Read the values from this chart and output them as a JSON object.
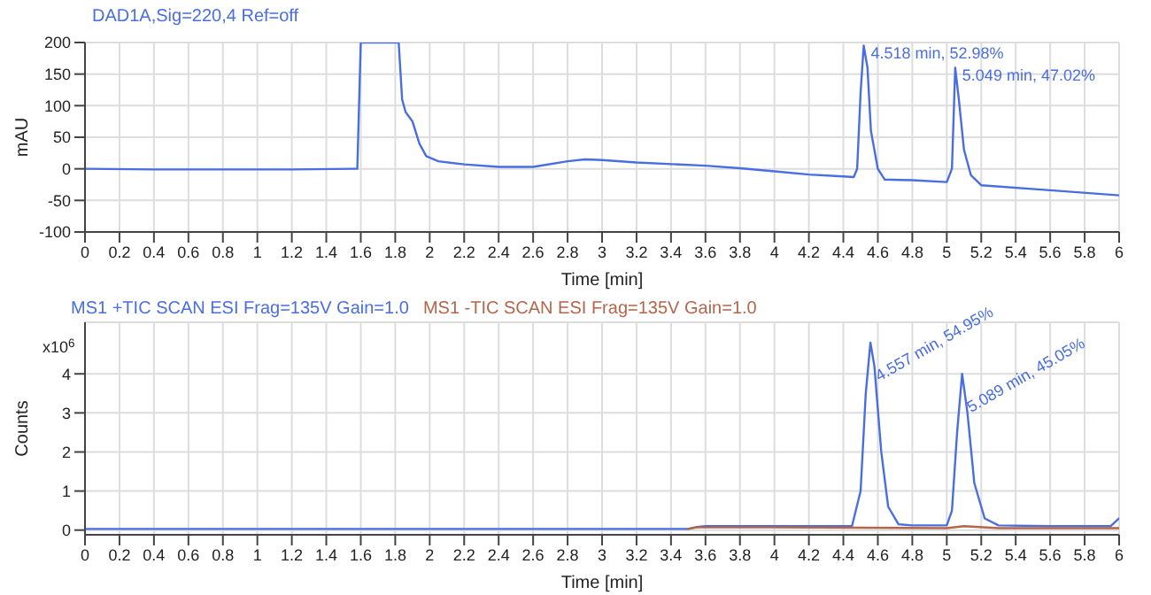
{
  "chart_data": [
    {
      "type": "line",
      "title": "DAD1A,Sig=220,4  Ref=off",
      "xlabel": "Time [min]",
      "ylabel": "mAU",
      "xlim": [
        0,
        6
      ],
      "xticks": [
        0,
        0.2,
        0.4,
        0.6,
        0.8,
        1,
        1.2,
        1.4,
        1.6,
        1.8,
        2,
        2.2,
        2.4,
        2.6,
        2.8,
        3,
        3.2,
        3.4,
        3.6,
        3.8,
        4,
        4.2,
        4.4,
        4.6,
        4.8,
        5,
        5.2,
        5.4,
        5.6,
        5.8,
        6
      ],
      "ylim": [
        -100,
        200
      ],
      "yticks": [
        -100,
        -50,
        0,
        50,
        100,
        150,
        200
      ],
      "grid": true,
      "marker": "none",
      "line_style": "solid",
      "annotations": [
        {
          "text": "4.518 min, 52.98%",
          "x": 4.518,
          "y": 195
        },
        {
          "text": "5.049 min, 47.02%",
          "x": 5.049,
          "y": 160
        }
      ],
      "series": [
        {
          "color": "#4a6ee0",
          "x": [
            0,
            0.4,
            0.8,
            1.2,
            1.56,
            1.58,
            1.6,
            1.7,
            1.82,
            1.84,
            1.86,
            1.9,
            1.94,
            1.98,
            2.05,
            2.2,
            2.4,
            2.6,
            2.8,
            2.9,
            3.0,
            3.2,
            3.6,
            3.8,
            4.0,
            4.2,
            4.4,
            4.46,
            4.48,
            4.5,
            4.518,
            4.54,
            4.56,
            4.6,
            4.64,
            4.8,
            5.0,
            5.03,
            5.049,
            5.07,
            5.1,
            5.14,
            5.2,
            5.6,
            6.0
          ],
          "values": [
            0,
            -1,
            -1,
            -1,
            0,
            0,
            200,
            200,
            200,
            110,
            90,
            75,
            40,
            20,
            12,
            7,
            3,
            3,
            12,
            15,
            14,
            10,
            5,
            1,
            -4,
            -9,
            -12,
            -13,
            0,
            120,
            195,
            160,
            60,
            0,
            -17,
            -18,
            -21,
            0,
            160,
            110,
            30,
            -10,
            -26,
            -34,
            -42
          ]
        }
      ]
    },
    {
      "type": "line",
      "xlabel": "Time [min]",
      "ylabel": "Counts",
      "xlim": [
        0,
        6
      ],
      "xticks": [
        0,
        0.2,
        0.4,
        0.6,
        0.8,
        1,
        1.2,
        1.4,
        1.6,
        1.8,
        2,
        2.2,
        2.4,
        2.6,
        2.8,
        3,
        3.2,
        3.4,
        3.6,
        3.8,
        4,
        4.2,
        4.4,
        4.6,
        4.8,
        5,
        5.2,
        5.4,
        5.6,
        5.8,
        6
      ],
      "ylim": [
        -0.12,
        5.32
      ],
      "yticks": [
        0,
        1,
        2,
        3,
        4
      ],
      "grid": true,
      "legend": "top left",
      "marker": "none",
      "line_style": "solid",
      "annotations": [
        "x10$^{6}$",
        {
          "text": "4.557 min, 54.95%",
          "x": 4.557,
          "y": 4.8
        },
        {
          "text": "5.089 min, 45.05%",
          "x": 5.089,
          "y": 4.0
        }
      ],
      "series": [
        {
          "name": "MS1 +TIC SCAN ESI Frag=135V Gain=1.0",
          "color": "#4a6ee0",
          "x": [
            0,
            1,
            2,
            3,
            3.5,
            3.55,
            3.6,
            4.0,
            4.45,
            4.5,
            4.53,
            4.557,
            4.58,
            4.62,
            4.66,
            4.72,
            4.8,
            5.0,
            5.03,
            5.06,
            5.089,
            5.12,
            5.16,
            5.22,
            5.3,
            5.6,
            5.95,
            6.0
          ],
          "values": [
            0.03,
            0.03,
            0.03,
            0.03,
            0.03,
            0.08,
            0.1,
            0.1,
            0.1,
            1.0,
            3.5,
            4.8,
            4.2,
            2.0,
            0.6,
            0.15,
            0.12,
            0.12,
            0.5,
            2.5,
            4.0,
            3.0,
            1.2,
            0.3,
            0.12,
            0.1,
            0.1,
            0.3
          ]
        },
        {
          "name": "MS1 -TIC SCAN ESI Frag=135V Gain=1.0",
          "color": "#b5654a",
          "x": [
            3.5,
            3.55,
            4.0,
            4.5,
            5.0,
            5.1,
            5.3,
            6.0
          ],
          "values": [
            0.03,
            0.07,
            0.07,
            0.06,
            0.05,
            0.1,
            0.05,
            0.05
          ]
        }
      ]
    }
  ]
}
